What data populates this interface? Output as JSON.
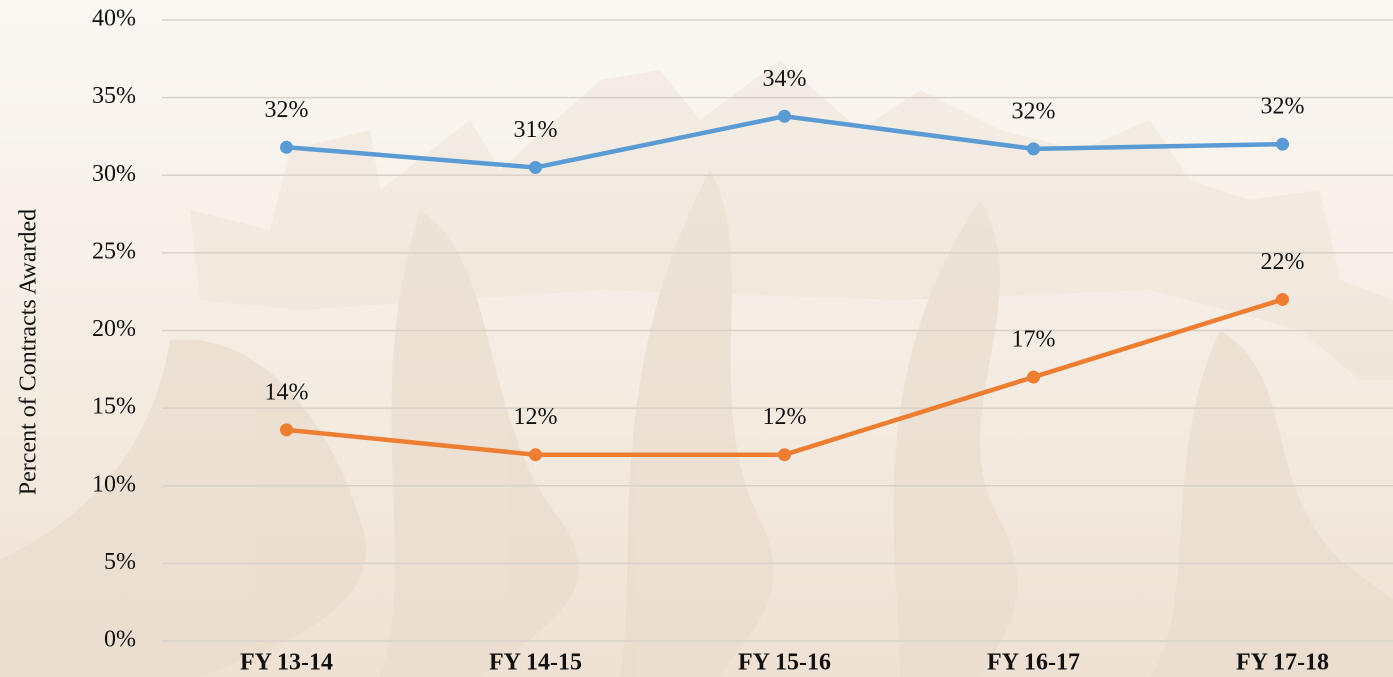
{
  "chart_data": {
    "type": "line",
    "y_axis_label": "Percent of Contracts Awarded",
    "categories": [
      "FY 13-14",
      "FY 14-15",
      "FY 15-16",
      "FY 16-17",
      "FY 17-18"
    ],
    "series": [
      {
        "color": "#5b9bd5",
        "values": [
          31.8,
          30.5,
          33.8,
          31.7,
          32.0
        ],
        "value_labels": [
          "32%",
          "31%",
          "34%",
          "32%",
          "32%"
        ]
      },
      {
        "color": "#ed7d31",
        "values": [
          13.6,
          12.0,
          12.0,
          17.0,
          22.0
        ],
        "value_labels": [
          "14%",
          "12%",
          "12%",
          "17%",
          "22%"
        ]
      }
    ],
    "ylim": [
      0,
      40
    ],
    "yticks": [
      {
        "value": 0,
        "label": "0%"
      },
      {
        "value": 5,
        "label": "5%"
      },
      {
        "value": 10,
        "label": "10%"
      },
      {
        "value": 15,
        "label": "15%"
      },
      {
        "value": 20,
        "label": "20%"
      },
      {
        "value": 25,
        "label": "25%"
      },
      {
        "value": 30,
        "label": "30%"
      },
      {
        "value": 35,
        "label": "35%"
      },
      {
        "value": 40,
        "label": "40%"
      }
    ],
    "grid": true
  }
}
